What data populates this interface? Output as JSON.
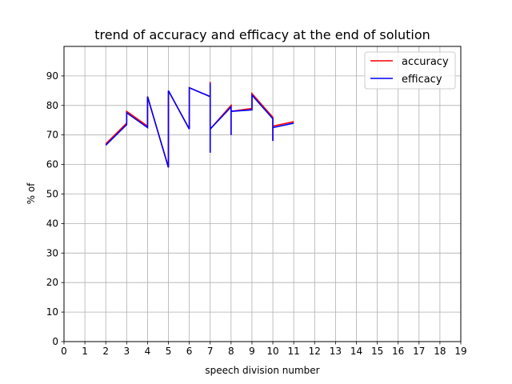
{
  "chart_data": {
    "type": "line",
    "title": "trend of accuracy and efficacy at the end of solution",
    "xlabel": "speech division number",
    "ylabel": "% of",
    "xlim": [
      0,
      19
    ],
    "ylim": [
      0,
      100
    ],
    "xticks": [
      0,
      1,
      2,
      3,
      4,
      5,
      6,
      7,
      8,
      9,
      10,
      11,
      12,
      13,
      14,
      15,
      16,
      17,
      18,
      19
    ],
    "yticks": [
      0,
      10,
      20,
      30,
      40,
      50,
      60,
      70,
      80,
      90
    ],
    "grid": true,
    "legend_position": "top-right",
    "colors": {
      "accuracy": "#ff0000",
      "efficacy": "#0000ff",
      "grid": "#b0b0b0"
    },
    "series": [
      {
        "name": "accuracy",
        "x": [
          2,
          3,
          3,
          4,
          4,
          4,
          5,
          5,
          5,
          6,
          6,
          6,
          7,
          7,
          7,
          7,
          8,
          8,
          8,
          9,
          9,
          10,
          10,
          10,
          11
        ],
        "y": [
          67,
          74,
          78,
          73,
          82,
          83,
          59,
          84,
          85,
          72,
          85,
          86,
          83,
          88,
          64,
          72,
          80,
          70,
          78,
          79,
          84,
          76,
          68,
          73,
          74.5
        ]
      },
      {
        "name": "efficacy",
        "x": [
          2,
          3,
          3,
          4,
          4,
          4,
          5,
          5,
          5,
          6,
          6,
          6,
          7,
          7,
          7,
          7,
          8,
          8,
          8,
          9,
          9,
          10,
          10,
          10,
          11
        ],
        "y": [
          66.5,
          73.5,
          77.5,
          72.5,
          82,
          83,
          59,
          84,
          85,
          72,
          85,
          86,
          83,
          87.5,
          64,
          72,
          79.5,
          70,
          78,
          78.5,
          83.5,
          75.5,
          68,
          72.5,
          74
        ]
      }
    ]
  }
}
